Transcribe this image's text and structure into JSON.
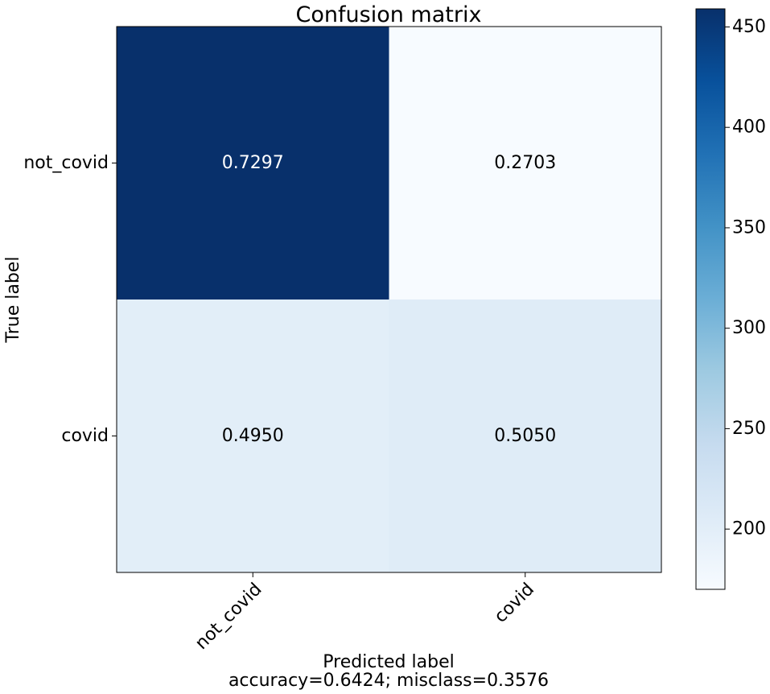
{
  "chart_data": {
    "type": "heatmap",
    "title": "Confusion matrix",
    "xlabel": "Predicted label",
    "xlabel_sub": "accuracy=0.6424; misclass=0.3576",
    "ylabel": "True label",
    "x_categories": [
      "not_covid",
      "covid"
    ],
    "y_categories": [
      "not_covid",
      "covid"
    ],
    "cell_labels": [
      [
        "0.7297",
        "0.2703"
      ],
      [
        "0.4950",
        "0.5050"
      ]
    ],
    "cell_counts": [
      [
        459,
        170
      ],
      [
        200,
        204
      ]
    ],
    "colormap": "Blues",
    "colorbar": {
      "range": [
        170,
        459
      ],
      "ticks": [
        200,
        250,
        300,
        350,
        400,
        450
      ],
      "tick_labels": [
        "200",
        "250",
        "300",
        "350",
        "400",
        "450"
      ]
    },
    "text_colors": {
      "dark": "#000000",
      "light": "#ffffff"
    },
    "grid": false
  }
}
